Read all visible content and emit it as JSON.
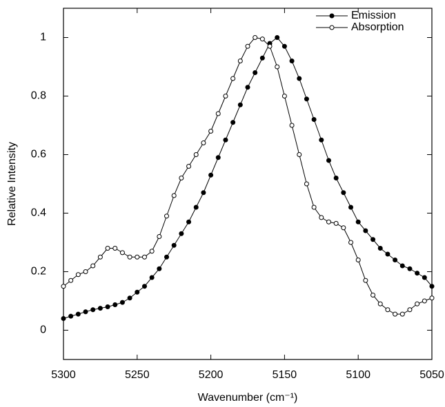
{
  "chart_data": {
    "type": "line",
    "xlabel": "Wavenumber   (cm⁻¹)",
    "ylabel": "Relative Intensity",
    "x": [
      5300,
      5295,
      5290,
      5285,
      5280,
      5275,
      5270,
      5265,
      5260,
      5255,
      5250,
      5245,
      5240,
      5235,
      5230,
      5225,
      5220,
      5215,
      5210,
      5205,
      5200,
      5195,
      5190,
      5185,
      5180,
      5175,
      5170,
      5165,
      5160,
      5155,
      5150,
      5145,
      5140,
      5135,
      5130,
      5125,
      5120,
      5115,
      5110,
      5105,
      5100,
      5095,
      5090,
      5085,
      5080,
      5075,
      5070,
      5065,
      5060,
      5055,
      5050
    ],
    "series": [
      {
        "name": "Emission",
        "color": "#000000",
        "marker": "filled",
        "values": [
          0.04,
          0.048,
          0.055,
          0.063,
          0.07,
          0.075,
          0.08,
          0.087,
          0.095,
          0.11,
          0.13,
          0.15,
          0.18,
          0.21,
          0.25,
          0.29,
          0.33,
          0.37,
          0.42,
          0.47,
          0.53,
          0.59,
          0.65,
          0.71,
          0.77,
          0.83,
          0.88,
          0.93,
          0.98,
          1.0,
          0.97,
          0.92,
          0.86,
          0.79,
          0.72,
          0.65,
          0.58,
          0.52,
          0.47,
          0.42,
          0.37,
          0.34,
          0.31,
          0.28,
          0.26,
          0.24,
          0.22,
          0.21,
          0.195,
          0.18,
          0.15
        ]
      },
      {
        "name": "Absorption",
        "color": "#000000",
        "marker": "open",
        "values": [
          0.15,
          0.17,
          0.19,
          0.2,
          0.22,
          0.25,
          0.28,
          0.28,
          0.265,
          0.25,
          0.25,
          0.25,
          0.27,
          0.32,
          0.39,
          0.46,
          0.52,
          0.56,
          0.6,
          0.64,
          0.68,
          0.74,
          0.8,
          0.86,
          0.92,
          0.97,
          1.0,
          0.995,
          0.97,
          0.9,
          0.8,
          0.7,
          0.6,
          0.5,
          0.42,
          0.385,
          0.37,
          0.365,
          0.35,
          0.3,
          0.24,
          0.17,
          0.12,
          0.09,
          0.07,
          0.055,
          0.055,
          0.07,
          0.09,
          0.1,
          0.11
        ]
      }
    ],
    "xlim": [
      5300,
      5050
    ],
    "xticks": [
      5300,
      5250,
      5200,
      5150,
      5100,
      5050
    ],
    "ylim": [
      -0.1,
      1.1
    ],
    "yticks": [
      0,
      0.2,
      0.4,
      0.6,
      0.8,
      1
    ],
    "legend": "upper right"
  }
}
